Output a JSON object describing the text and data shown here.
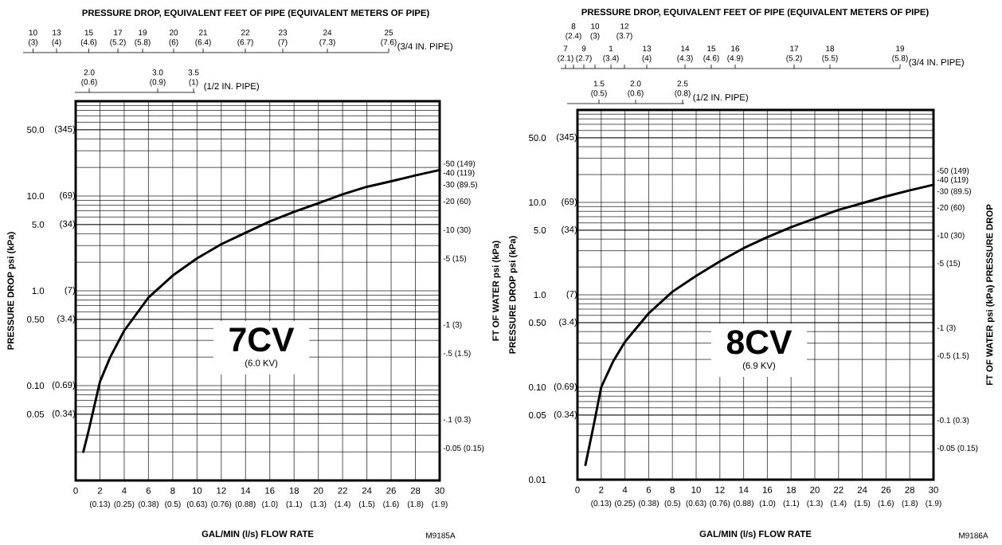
{
  "chart_data": [
    {
      "type": "line",
      "title": "PRESSURE DROP, EQUIVALENT FEET OF PIPE (EQUIVALENT METERS OF PIPE)",
      "xlabel": "GAL/MIN (l/s) FLOW RATE",
      "ylabel": "PRESSURE DROP psi (kPa)",
      "y2label": "FT OF WATER psi (kPa)",
      "annotations": [
        "7CV",
        "(6.0 KV)",
        "M9185A",
        "(345)",
        "(69)",
        "(34)",
        "(7)",
        "(3.4)",
        "(0.69)",
        "(0.34)",
        "-50 (149)",
        "-40 (119)",
        "-30 (89.5)",
        "-20 (60)",
        "-10 (30)",
        "-5 (15)",
        "-1 (3)",
        "-.5 (1.5)",
        "-.1 (0.3)",
        "-0.05 (0.15)",
        "(3/4 IN. PIPE)",
        "10 (3)",
        "13 (4)",
        "15 (4.6)",
        "17 (5.2)",
        "19 (5.8)",
        "20 (6)",
        "21 (6.4)",
        "22 (6.7)",
        "23 (7)",
        "24 (7.3)",
        "25 (7.6)",
        "(1/2 IN. PIPE)",
        "2.0 (0.6)",
        "3.0 (0.9)",
        "3.5 (1)"
      ],
      "x": [
        0.63,
        1.08,
        2,
        2.85,
        4,
        6,
        8,
        10,
        12,
        14,
        16,
        18,
        20,
        22,
        24,
        26,
        28,
        30
      ],
      "series": [
        {
          "color": "#000000",
          "values": [
            0.02,
            0.034,
            0.11,
            0.2,
            0.38,
            0.85,
            1.45,
            2.2,
            3.1,
            4.1,
            5.4,
            6.8,
            8.4,
            10.4,
            12.5,
            14.3,
            16.5,
            18.8
          ]
        }
      ],
      "log": "y",
      "grid": true,
      "xlim": [
        0,
        30
      ],
      "xticks": [
        0,
        2,
        4,
        6,
        8,
        10,
        12,
        14,
        16,
        18,
        20,
        22,
        24,
        26,
        28,
        30
      ],
      "ylim": [
        0.01,
        100
      ],
      "yticks": [
        {
          "value": 50,
          "label": "50.0"
        },
        {
          "value": 10,
          "label": "10.0"
        },
        {
          "value": 5,
          "label": "5.0"
        },
        {
          "value": 1,
          "label": "1.0"
        },
        {
          "value": 0.5,
          "label": "0.50"
        },
        {
          "value": 0.1,
          "label": "0.10"
        },
        {
          "value": 0.05,
          "label": "0.05"
        }
      ],
      "x2lim": [
        0,
        1.893
      ],
      "x2ticks": [
        {
          "value": 0.126,
          "label": "(0.13)"
        },
        {
          "value": 0.252,
          "label": "(0.25)"
        },
        {
          "value": 0.379,
          "label": "(0.38)"
        },
        {
          "value": 0.505,
          "label": "(0.5)"
        },
        {
          "value": 0.631,
          "label": "(0.63)"
        },
        {
          "value": 0.757,
          "label": "(0.76)"
        },
        {
          "value": 0.883,
          "label": "(0.88)"
        },
        {
          "value": 1.01,
          "label": "(1.0)"
        },
        {
          "value": 1.136,
          "label": "(1.1)"
        },
        {
          "value": 1.262,
          "label": "(1.3)"
        },
        {
          "value": 1.388,
          "label": "(1.4)"
        },
        {
          "value": 1.514,
          "label": "(1.5)"
        },
        {
          "value": 1.64,
          "label": "(1.6)"
        },
        {
          "value": 1.767,
          "label": "(1.8)"
        },
        {
          "value": 1.893,
          "label": "(1.9)"
        }
      ]
    },
    {
      "type": "line",
      "title": "PRESSURE DROP, EQUIVALENT FEET OF PIPE (EQUIVALENT METERS OF PIPE)",
      "xlabel": "GAL/MIN (l/s) FLOW RATE",
      "ylabel": "PRESSURE DROP psi (kPa)",
      "y2label": "FT OF WATER psi (kPa) PRESSURE DROP",
      "annotations": [
        "8CV",
        "(6.9 KV)",
        "M9186A",
        "(345)",
        "(69)",
        "(34)",
        "(7)",
        "(3.4)",
        "(0.69)",
        "(0.34)",
        "-50 (149)",
        "-40 (119)",
        "-30 (89.5)",
        "-20 (60)",
        "-10 (30)",
        "-5 (15)",
        "-1 (3)",
        "-0.5 (1.5)",
        "-0.1 (0.3)",
        "-0.05 (0.15)",
        "(3/4 IN. PIPE)",
        "7 (2.1)",
        "8 (2.4)",
        "9 (2.7)",
        "10 (3)",
        "1 (3.4)",
        "12 (3.7)",
        "13 (4)",
        "14 (4.3)",
        "15 (4.6)",
        "16 (4.9)",
        "17 (5.2)",
        "18 (5.5)",
        "19 (5.8)",
        "(1/2 IN. PIPE)",
        "1.5 (0.5)",
        "2.0 (0.6)",
        "2.5 (0.8)"
      ],
      "x": [
        0.67,
        1.42,
        2,
        3.0,
        4,
        6,
        8,
        10,
        12,
        14,
        16,
        18,
        20,
        22,
        24,
        26,
        28,
        30
      ],
      "series": [
        {
          "color": "#000000",
          "values": [
            0.0144,
            0.042,
            0.1,
            0.19,
            0.31,
            0.63,
            1.08,
            1.6,
            2.3,
            3.2,
            4.2,
            5.4,
            6.7,
            8.3,
            9.8,
            11.6,
            13.5,
            15.5
          ]
        }
      ],
      "log": "y",
      "grid": true,
      "xlim": [
        0,
        30
      ],
      "xticks": [
        0,
        2,
        4,
        6,
        8,
        10,
        12,
        14,
        16,
        18,
        20,
        22,
        24,
        26,
        28,
        30
      ],
      "ylim": [
        0.01,
        100
      ],
      "yticks": [
        {
          "value": 50,
          "label": "50.0"
        },
        {
          "value": 10,
          "label": "10.0"
        },
        {
          "value": 5,
          "label": "5.0"
        },
        {
          "value": 1,
          "label": "1.0"
        },
        {
          "value": 0.5,
          "label": "0.50"
        },
        {
          "value": 0.1,
          "label": "0.10"
        },
        {
          "value": 0.05,
          "label": "0.05"
        },
        {
          "value": 0.01,
          "label": "0.01"
        }
      ],
      "x2lim": [
        0,
        1.893
      ],
      "x2ticks": [
        {
          "value": 0.126,
          "label": "(0.13)"
        },
        {
          "value": 0.252,
          "label": "(0.25)"
        },
        {
          "value": 0.379,
          "label": "(0.38)"
        },
        {
          "value": 0.505,
          "label": "(0.5)"
        },
        {
          "value": 0.631,
          "label": "(0.63)"
        },
        {
          "value": 0.757,
          "label": "(0.76)"
        },
        {
          "value": 0.883,
          "label": "(0.88)"
        },
        {
          "value": 1.01,
          "label": "(1.0)"
        },
        {
          "value": 1.136,
          "label": "(1.1)"
        },
        {
          "value": 1.262,
          "label": "(1.3)"
        },
        {
          "value": 1.388,
          "label": "(1.4)"
        },
        {
          "value": 1.514,
          "label": "(1.5)"
        },
        {
          "value": 1.64,
          "label": "(1.6)"
        },
        {
          "value": 1.767,
          "label": "(1.8)"
        },
        {
          "value": 1.893,
          "label": "(1.9)"
        }
      ]
    }
  ]
}
